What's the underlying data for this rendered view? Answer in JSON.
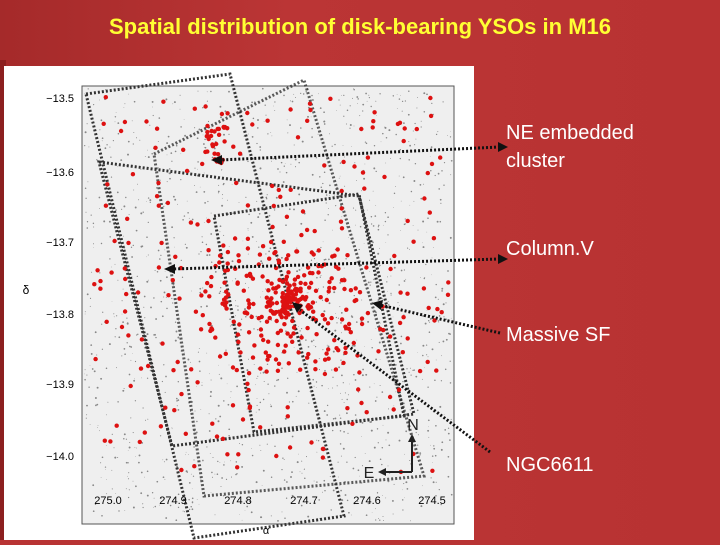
{
  "title": "Spatial distribution of disk-bearing YSOs in M16",
  "annotations": {
    "ne_line1": "NE embedded",
    "ne_line2": "cluster",
    "column": "Column.V",
    "massive": "Massive SF",
    "ngc": "NGC6611"
  },
  "plot": {
    "ylabel": "δ",
    "xlabel": "α",
    "y_ticks": [
      "−13.5",
      "−13.6",
      "−13.7",
      "−13.8",
      "−13.9",
      "−14.0"
    ],
    "x_ticks": [
      "275.0",
      "274.9",
      "274.8",
      "274.7",
      "274.6",
      "274.5"
    ],
    "compass_n": "N",
    "compass_e": "E"
  },
  "colors": {
    "title": "#ffff33",
    "background": "#b83333",
    "points": "#dd1111"
  }
}
